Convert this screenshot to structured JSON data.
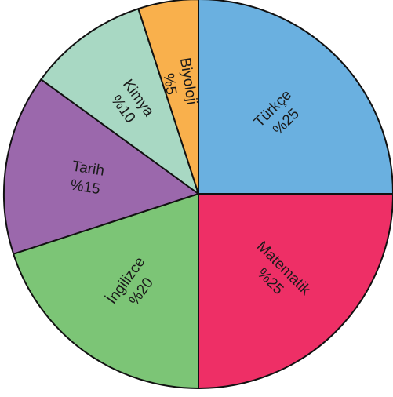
{
  "chart_data": {
    "type": "pie",
    "categories": [
      "Türkçe",
      "Matematik",
      "İngilizce",
      "Tarih",
      "Kimya",
      "Biyoloji"
    ],
    "values": [
      25,
      25,
      20,
      15,
      10,
      5
    ],
    "value_labels": [
      "%25",
      "%25",
      "%20",
      "%15",
      "%10",
      "%5"
    ],
    "colors": [
      "#6ab0e0",
      "#ee2f66",
      "#7cc576",
      "#9b68ac",
      "#a8d8c3",
      "#f9b04c"
    ],
    "start": "12 o'clock",
    "direction": "clockwise",
    "title": "",
    "legend": "none"
  }
}
